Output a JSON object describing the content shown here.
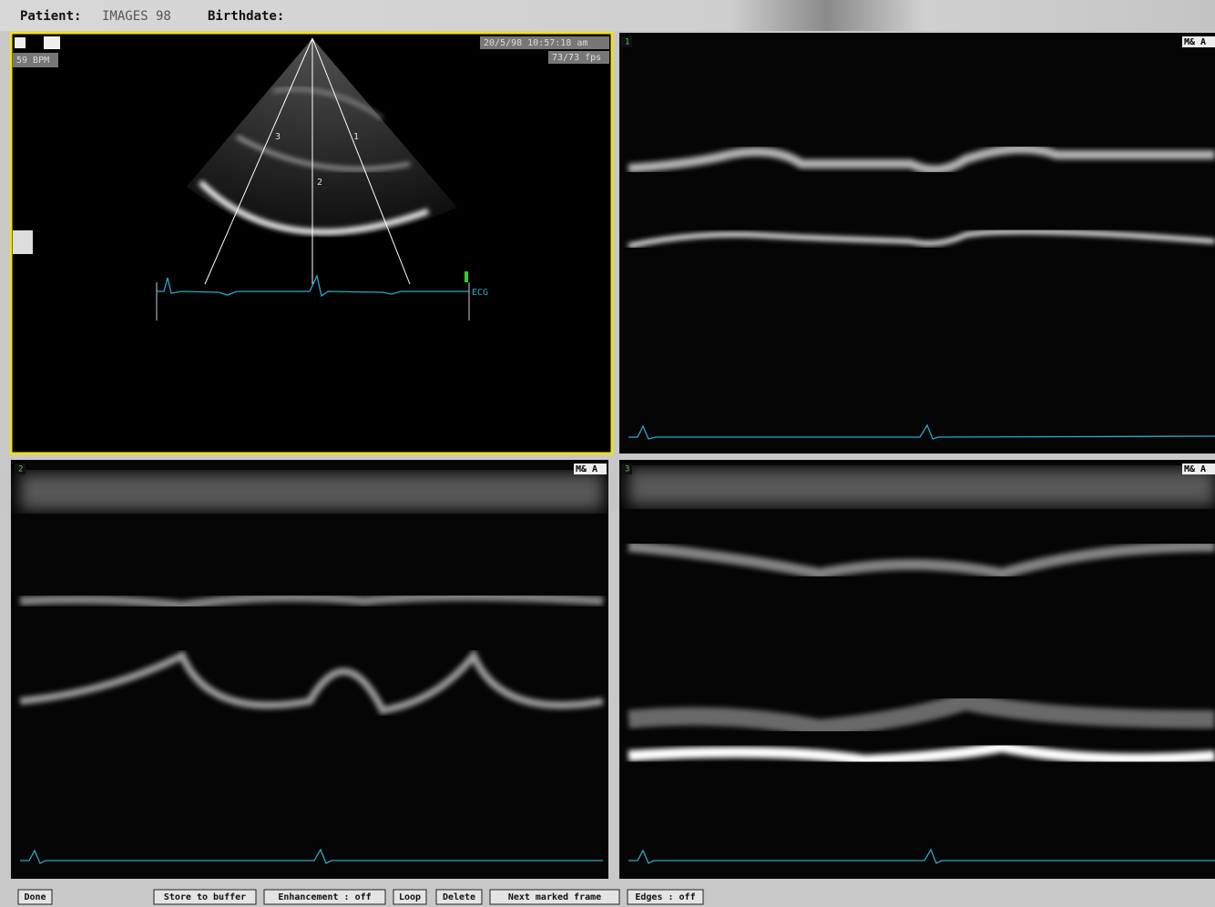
{
  "header": {
    "patient_label": "Patient:",
    "patient_name": "IMAGES 98",
    "birthdate_label": "Birthdate:"
  },
  "panels": [
    {
      "heart_rate": "59 BPM",
      "timestamp": "20/5/98 10:57:18 am",
      "frame_rate": "73/73 fps",
      "ecg_label": "ECG",
      "scan_lines": [
        "3",
        "1",
        "2"
      ]
    },
    {
      "number": "1",
      "tag": "M& A"
    },
    {
      "number": "2",
      "tag": "M& A"
    },
    {
      "number": "3",
      "tag": "M& A"
    }
  ],
  "toolbar": {
    "buttons": [
      "Done",
      "Store to buffer",
      "Enhancement : off",
      "Loop",
      "Delete",
      "Next marked frame",
      "Edges : off"
    ]
  }
}
